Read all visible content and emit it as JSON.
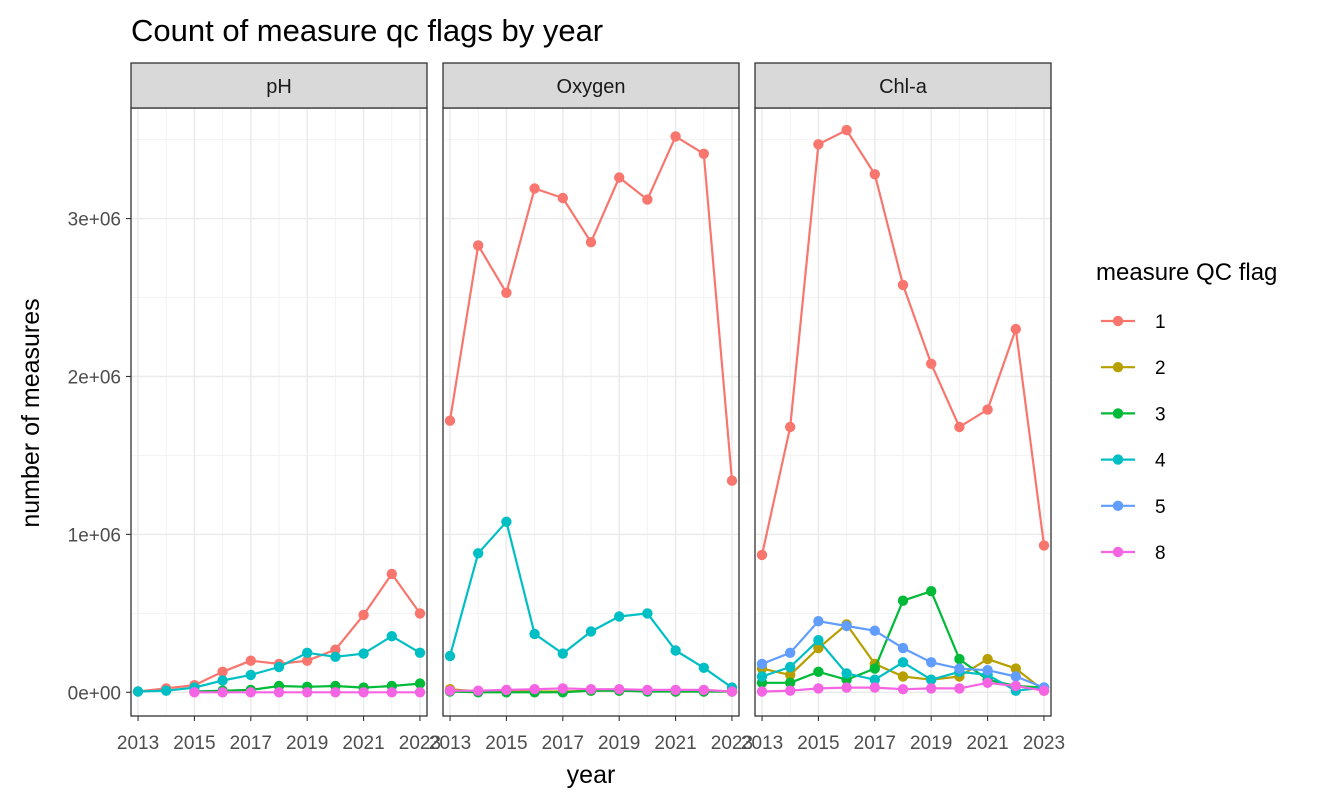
{
  "chart_data": {
    "type": "line",
    "title": "Count of measure qc flags by year",
    "xlabel": "year",
    "ylabel": "number of measures",
    "x": [
      2013,
      2014,
      2015,
      2016,
      2017,
      2018,
      2019,
      2020,
      2021,
      2022,
      2023
    ],
    "x_ticks": [
      "2013",
      "2015",
      "2017",
      "2019",
      "2021",
      "2023"
    ],
    "xlim": [
      2012.75,
      2023.25
    ],
    "ylim": [
      -150000,
      3700000
    ],
    "y_ticks": [
      0,
      1000000,
      2000000,
      3000000
    ],
    "y_tick_labels": [
      "0e+00",
      "1e+06",
      "2e+06",
      "3e+06"
    ],
    "legend": {
      "title": "measure QC flag",
      "position": "right",
      "entries": [
        {
          "label": "1",
          "color": "#F8766D"
        },
        {
          "label": "2",
          "color": "#B79F00"
        },
        {
          "label": "3",
          "color": "#00BA38"
        },
        {
          "label": "4",
          "color": "#00BFC4"
        },
        {
          "label": "5",
          "color": "#619CFF"
        },
        {
          "label": "8",
          "color": "#F564E3"
        }
      ]
    },
    "panels": [
      {
        "name": "pH",
        "series": [
          {
            "name": "1",
            "color": "#F8766D",
            "values": [
              5000,
              25000,
              45000,
              130000,
              200000,
              180000,
              200000,
              270000,
              490000,
              750000,
              500000
            ]
          },
          {
            "name": "3",
            "color": "#00BA38",
            "values": [
              null,
              null,
              5000,
              10000,
              15000,
              40000,
              35000,
              40000,
              30000,
              40000,
              55000
            ]
          },
          {
            "name": "4",
            "color": "#00BFC4",
            "values": [
              5000,
              10000,
              30000,
              75000,
              110000,
              160000,
              250000,
              225000,
              245000,
              355000,
              250000
            ]
          },
          {
            "name": "8",
            "color": "#F564E3",
            "values": [
              null,
              null,
              0,
              0,
              0,
              0,
              0,
              0,
              0,
              0,
              0
            ]
          }
        ]
      },
      {
        "name": "Oxygen",
        "series": [
          {
            "name": "1",
            "color": "#F8766D",
            "values": [
              1720000,
              2830000,
              2530000,
              3190000,
              3130000,
              2850000,
              3260000,
              3120000,
              3520000,
              3410000,
              1340000
            ]
          },
          {
            "name": "2",
            "color": "#B79F00",
            "values": [
              20000,
              5000,
              5000,
              5000,
              5000,
              10000,
              10000,
              10000,
              5000,
              5000,
              5000
            ]
          },
          {
            "name": "3",
            "color": "#00BA38",
            "values": [
              5000,
              0,
              0,
              0,
              0,
              10000,
              10000,
              5000,
              5000,
              5000,
              5000
            ]
          },
          {
            "name": "4",
            "color": "#00BFC4",
            "values": [
              230000,
              880000,
              1080000,
              370000,
              245000,
              385000,
              480000,
              500000,
              265000,
              155000,
              30000
            ]
          },
          {
            "name": "8",
            "color": "#F564E3",
            "values": [
              10000,
              10000,
              15000,
              20000,
              25000,
              20000,
              20000,
              15000,
              15000,
              15000,
              5000
            ]
          }
        ]
      },
      {
        "name": "Chl-a",
        "series": [
          {
            "name": "1",
            "color": "#F8766D",
            "values": [
              870000,
              1680000,
              3470000,
              3560000,
              3280000,
              2580000,
              2080000,
              1680000,
              1790000,
              2300000,
              930000
            ]
          },
          {
            "name": "2",
            "color": "#B79F00",
            "values": [
              150000,
              110000,
              280000,
              430000,
              180000,
              100000,
              80000,
              100000,
              210000,
              150000,
              10000
            ]
          },
          {
            "name": "3",
            "color": "#00BA38",
            "values": [
              60000,
              60000,
              130000,
              80000,
              150000,
              580000,
              640000,
              210000,
              80000,
              40000,
              30000
            ]
          },
          {
            "name": "4",
            "color": "#00BFC4",
            "values": [
              100000,
              160000,
              330000,
              120000,
              80000,
              190000,
              80000,
              130000,
              110000,
              10000,
              30000
            ]
          },
          {
            "name": "5",
            "color": "#619CFF",
            "values": [
              180000,
              250000,
              450000,
              420000,
              390000,
              280000,
              190000,
              150000,
              140000,
              100000,
              30000
            ]
          },
          {
            "name": "8",
            "color": "#F564E3",
            "values": [
              5000,
              10000,
              25000,
              30000,
              30000,
              20000,
              25000,
              25000,
              60000,
              40000,
              10000
            ]
          }
        ]
      }
    ]
  }
}
